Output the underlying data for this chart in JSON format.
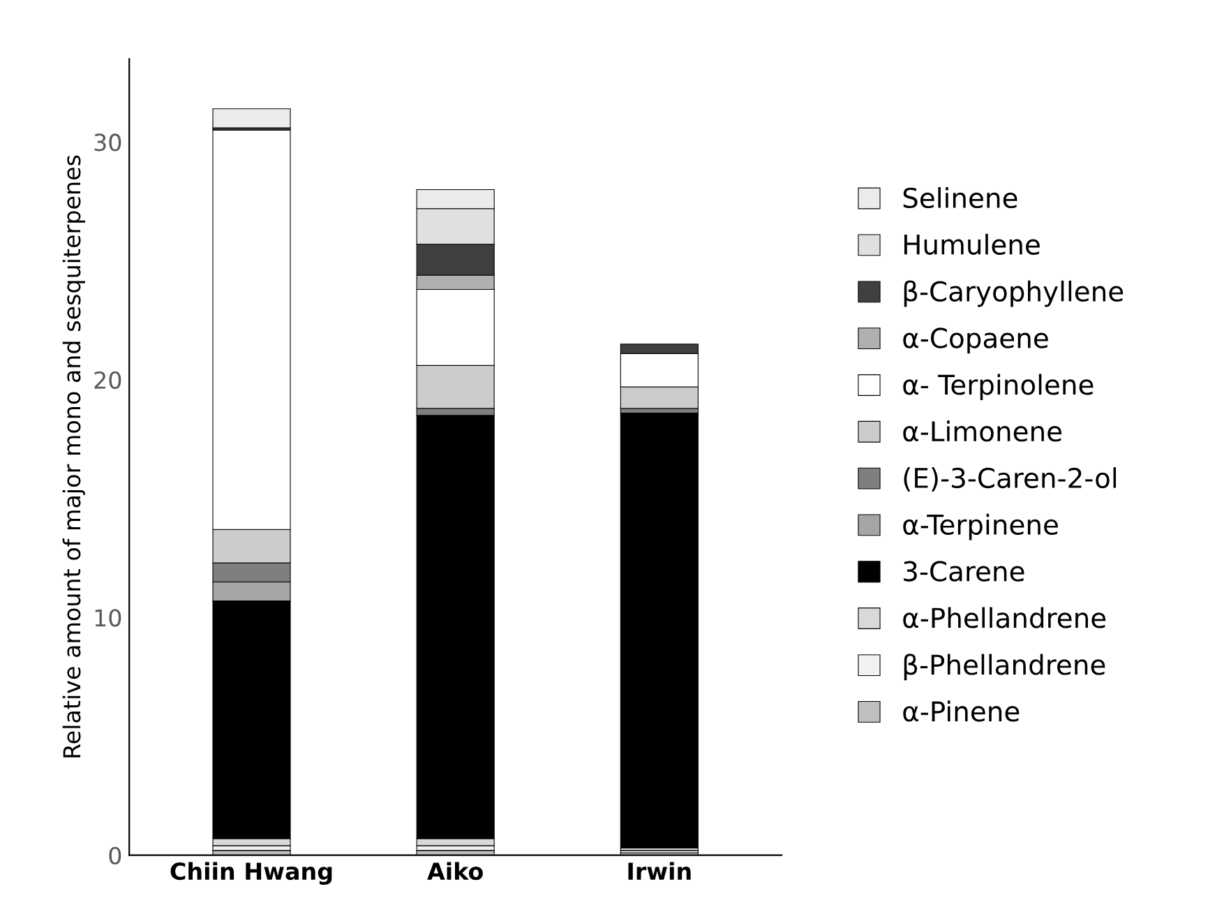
{
  "chart_data": {
    "type": "bar",
    "stacked": true,
    "ylabel": "Relative amount of major mono and sesquiterpenes",
    "categories": [
      "Chiin Hwang",
      "Aiko",
      "Irwin"
    ],
    "ylim": [
      0,
      33.5
    ],
    "yticks": [
      0,
      10,
      20,
      30
    ],
    "grid": false,
    "legend": "right",
    "series": [
      {
        "name": "α-Pinene",
        "color": "#bfbfbf",
        "values": [
          0.2,
          0.2,
          0.1
        ]
      },
      {
        "name": "β-Phellandrene",
        "color": "#f2f2f2",
        "values": [
          0.2,
          0.2,
          0.1
        ]
      },
      {
        "name": "α-Phellandrene",
        "color": "#d9d9d9",
        "values": [
          0.3,
          0.3,
          0.1
        ]
      },
      {
        "name": "3-Carene",
        "color": "#000000",
        "values": [
          10.0,
          17.8,
          18.3
        ]
      },
      {
        "name": "α-Terpinene",
        "color": "#a6a6a6",
        "values": [
          0.8,
          null,
          null
        ]
      },
      {
        "name": "(E)-3-Caren-2-ol",
        "color": "#7f7f7f",
        "values": [
          0.8,
          0.3,
          0.2
        ]
      },
      {
        "name": "α-Limonene",
        "color": "#cccccc",
        "values": [
          1.4,
          1.8,
          0.9
        ]
      },
      {
        "name": "α- Terpinolene",
        "color": "#ffffff",
        "values": [
          16.8,
          3.2,
          1.4
        ]
      },
      {
        "name": "α-Copaene",
        "color": "#b0b0b0",
        "values": [
          null,
          0.6,
          null
        ]
      },
      {
        "name": "β-Caryophyllene",
        "color": "#404040",
        "values": [
          0.1,
          1.3,
          0.4
        ]
      },
      {
        "name": "Humulene",
        "color": "#e0e0e0",
        "values": [
          null,
          1.5,
          null
        ]
      },
      {
        "name": "Selinene",
        "color": "#ebebeb",
        "values": [
          0.8,
          0.8,
          null
        ]
      }
    ]
  }
}
